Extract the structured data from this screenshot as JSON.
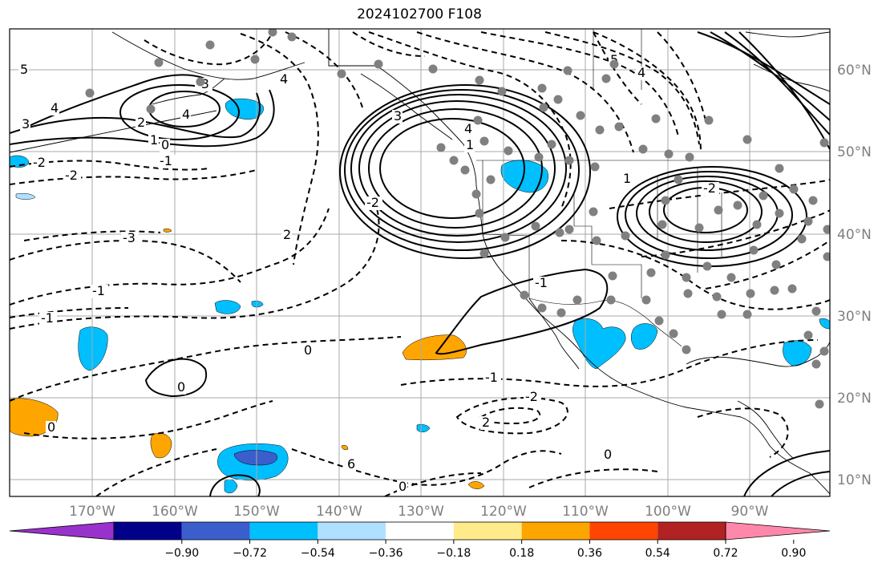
{
  "title": "2024102700 F108",
  "map": {
    "projection": "plate-carree",
    "lon_range": [
      -177,
      -77
    ],
    "lat_range": [
      8,
      66
    ],
    "gridlines": true,
    "lon_ticks": [
      "170°W",
      "160°W",
      "150°W",
      "140°W",
      "130°W",
      "120°W",
      "110°W",
      "100°W",
      "90°W"
    ],
    "lat_ticks": [
      "60°N",
      "50°N",
      "40°N",
      "30°N",
      "20°N",
      "10°N"
    ],
    "contour_labels": [
      "5",
      "4",
      "3",
      "2",
      "1",
      "0",
      "-1",
      "-2",
      "-3",
      "4",
      "0",
      "-2",
      "-3",
      "2",
      "-1",
      "0",
      "-1",
      "-2",
      "0",
      "0",
      "-1",
      "2",
      "4",
      "3",
      "4",
      "1",
      "-1",
      "-2",
      "5",
      "4",
      "6",
      "0",
      "0",
      "1",
      "-2"
    ],
    "colors": {
      "shading_neg_strong": "#3a5fcd",
      "shading_neg": "#00bfff",
      "shading_neg_light": "#b0e0ff",
      "shading_pos": "#ffa500",
      "contour": "#000000",
      "grid": "#a9a9a9",
      "station_dot": "#808080"
    }
  },
  "colorbar": {
    "colors": [
      "#9932cc",
      "#00008b",
      "#3a5fcd",
      "#00bfff",
      "#b0e0ff",
      "#ffffff",
      "#ffeb8a",
      "#ffa500",
      "#ff4500",
      "#b22222",
      "#ff88aa"
    ],
    "tick_labels": [
      "−0.90",
      "−0.72",
      "−0.54",
      "−0.36",
      "−0.18",
      "0.18",
      "0.36",
      "0.54",
      "0.72",
      "0.90"
    ],
    "extend": "both"
  }
}
